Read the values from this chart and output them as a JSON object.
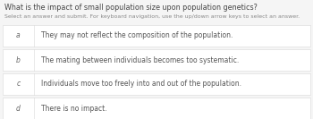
{
  "title": "What is the impact of small population size upon population genetics?",
  "subtitle": "Select an answer and submit. For keyboard navigation, use the up/down arrow keys to select an answer.",
  "options": [
    {
      "letter": "a",
      "text": "They may not reflect the composition of the population."
    },
    {
      "letter": "b",
      "text": "The mating between individuals becomes too systematic."
    },
    {
      "letter": "c",
      "text": "Individuals move too freely into and out of the population."
    },
    {
      "letter": "d",
      "text": "There is no impact."
    }
  ],
  "bg_color": "#f5f5f5",
  "box_color": "#ffffff",
  "box_border_color": "#d8d8d8",
  "gap_color": "#e8e8e8",
  "title_color": "#444444",
  "subtitle_color": "#888888",
  "letter_color": "#666666",
  "text_color": "#555555",
  "title_fontsize": 5.8,
  "subtitle_fontsize": 4.5,
  "option_fontsize": 5.5,
  "letter_fontsize": 5.5
}
